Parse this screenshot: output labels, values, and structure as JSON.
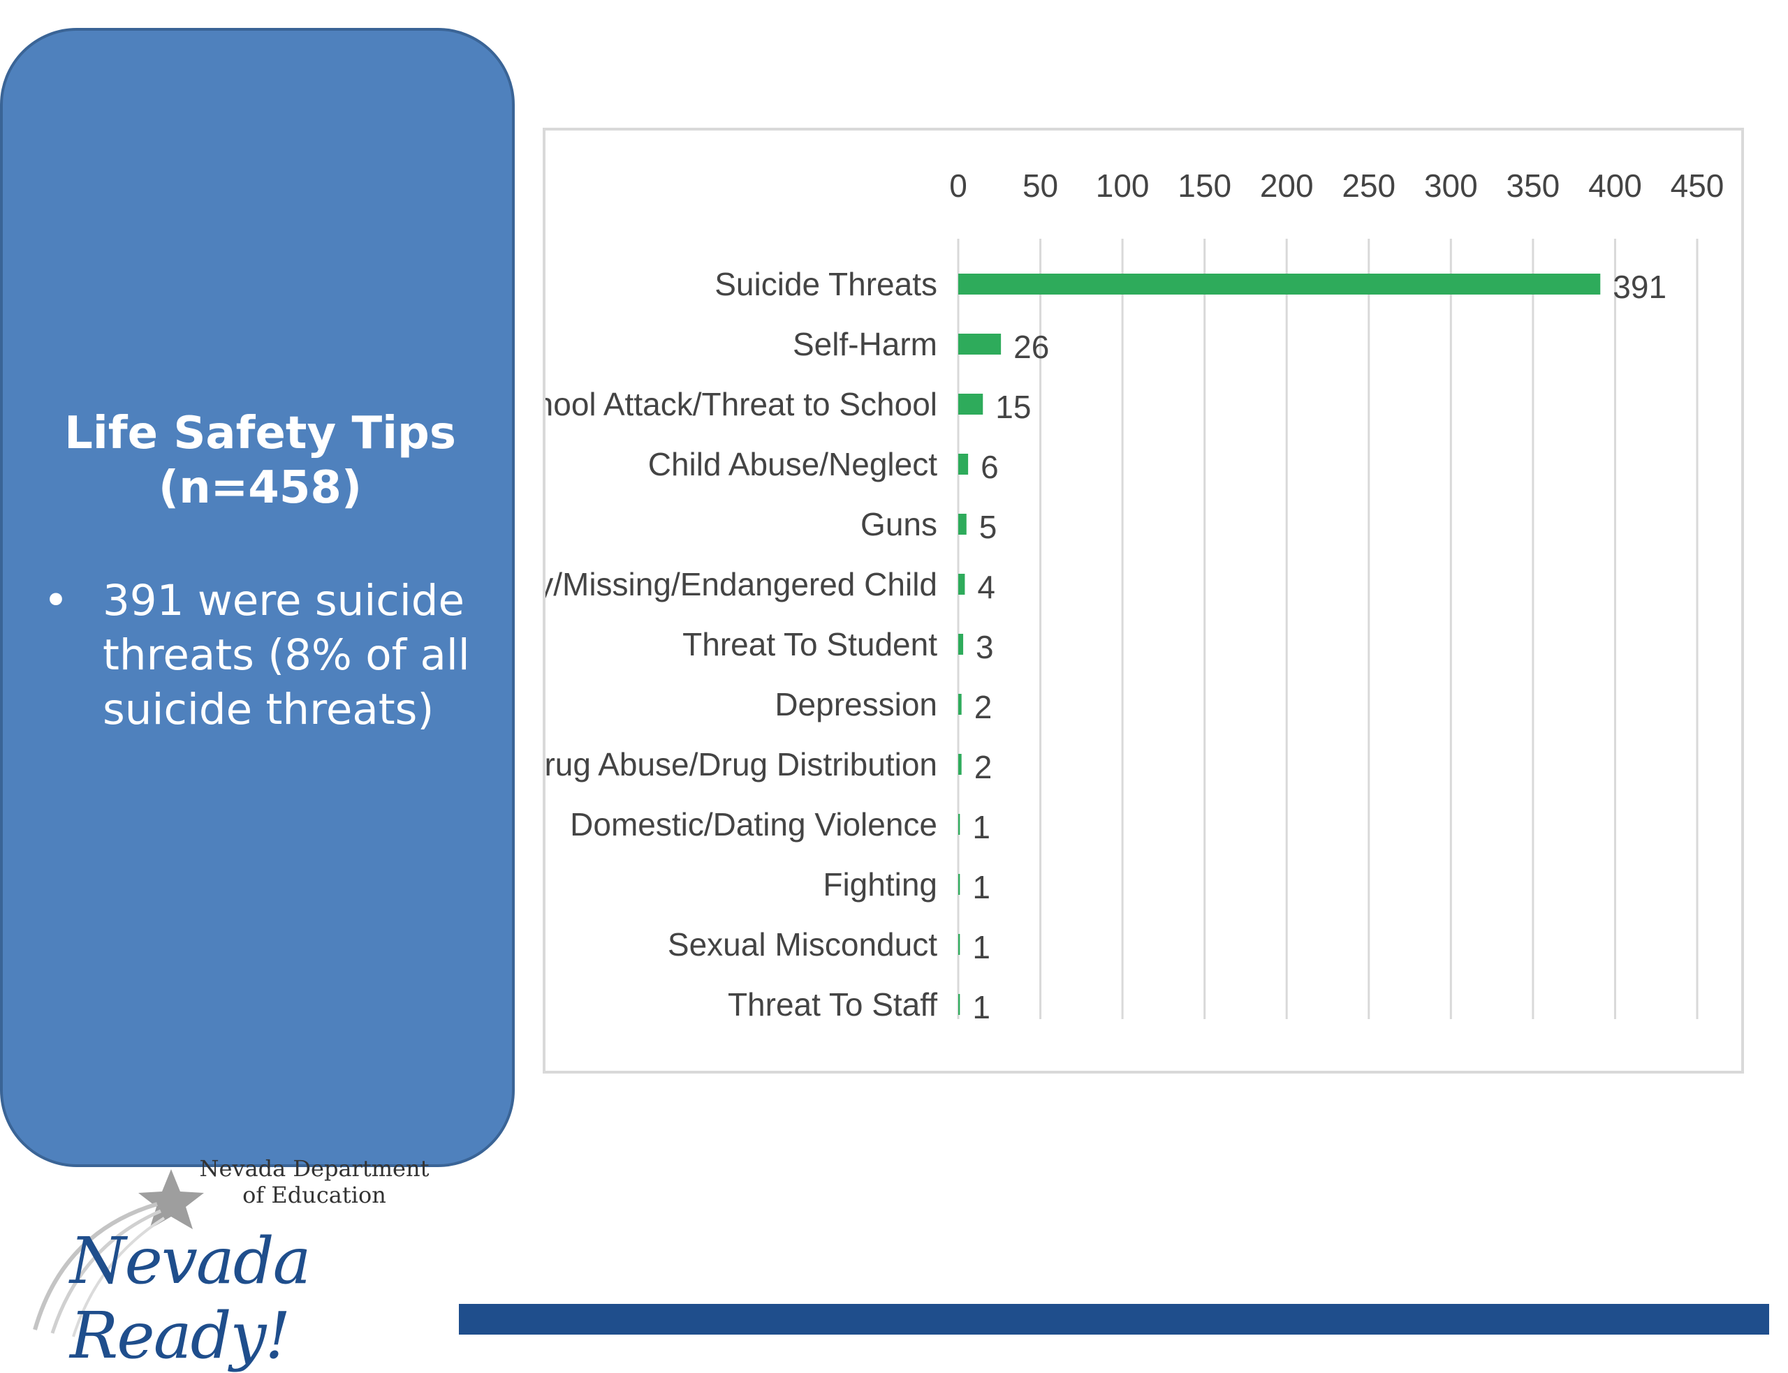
{
  "panel": {
    "title_line1": "Life Safety Tips",
    "title_line2": "(n=458)",
    "bullet_symbol": "•",
    "bullet_text": "391 were suicide threats (8% of all suicide threats)"
  },
  "logo": {
    "dept_line1": "Nevada Department",
    "dept_line2": "of Education",
    "script": "Nevada Ready!"
  },
  "colors": {
    "panel": "#4f81bd",
    "bar": "#2eab5b",
    "footer_bar": "#1f4e8c"
  },
  "chart_data": {
    "type": "bar",
    "orientation": "horizontal",
    "title": "",
    "xlabel": "",
    "ylabel": "",
    "xlim": [
      0,
      450
    ],
    "ticks": [
      0,
      50,
      100,
      150,
      200,
      250,
      300,
      350,
      400,
      450
    ],
    "axis_position": "top",
    "grid": true,
    "categories": [
      "Suicide Threats",
      "Self-Harm",
      "Planned School Attack/Threat to School",
      "Child Abuse/Neglect",
      "Guns",
      "Runaway/Missing/Endangered Child",
      "Threat To Student",
      "Depression",
      "Drug Abuse/Drug Distribution",
      "Domestic/Dating Violence",
      "Fighting",
      "Sexual Misconduct",
      "Threat To Staff"
    ],
    "values": [
      391,
      26,
      15,
      6,
      5,
      4,
      3,
      2,
      2,
      1,
      1,
      1,
      1
    ]
  }
}
